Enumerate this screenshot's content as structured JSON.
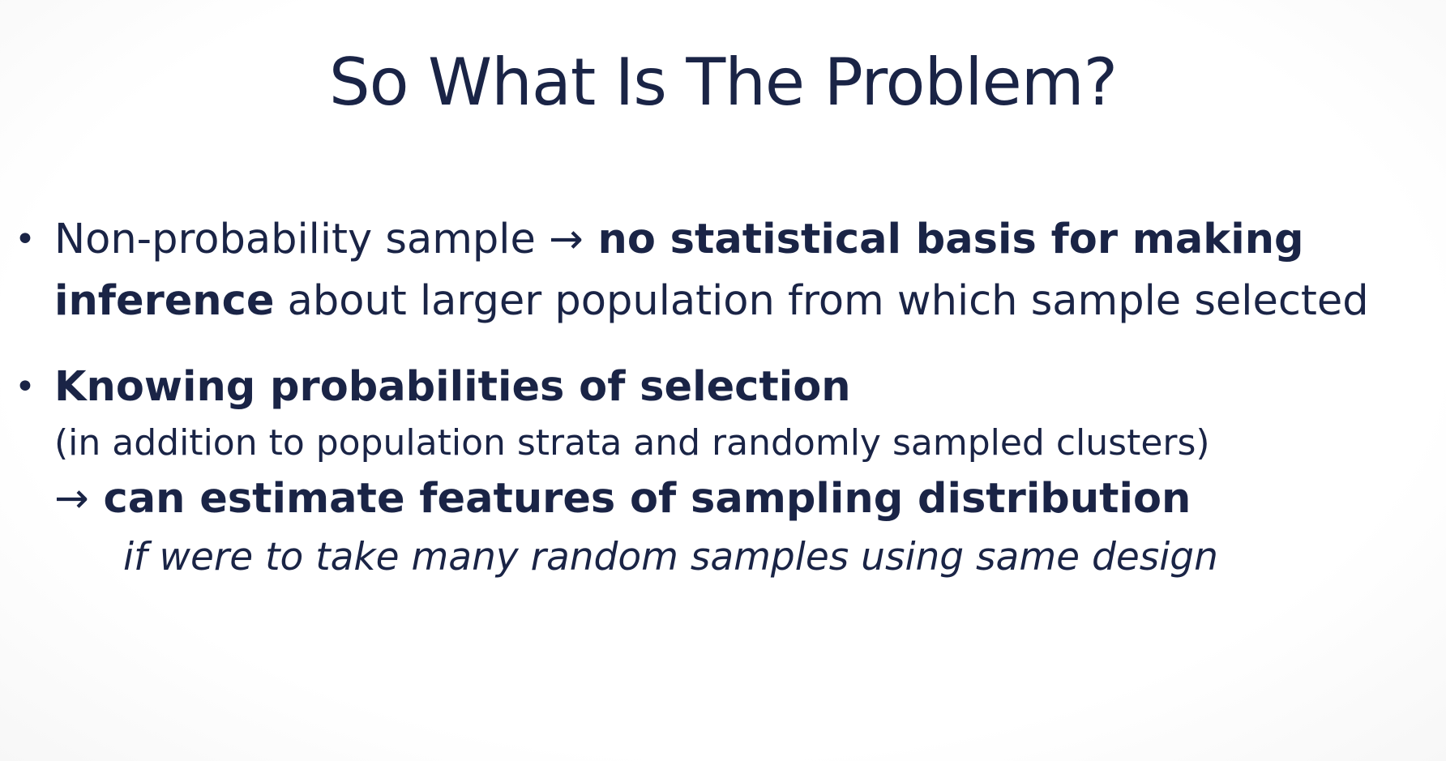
{
  "slide": {
    "title": "So What Is The Problem?",
    "bullets": [
      {
        "marker": "•",
        "line1_plain": "Non-probability sample ",
        "line1_arrow": "→",
        "line1_bold": " no statistical basis for making",
        "line2_bold": "inference",
        "line2_plain": " about larger population from which sample selected"
      },
      {
        "marker": "•",
        "heading_bold": "Knowing probabilities of selection",
        "paren_note": "(in addition to population strata and randomly sampled clusters)",
        "result_arrow": "→",
        "result_bold": " can estimate features of sampling distribution",
        "italic_note": "if were to take many random samples using same design"
      }
    ]
  }
}
